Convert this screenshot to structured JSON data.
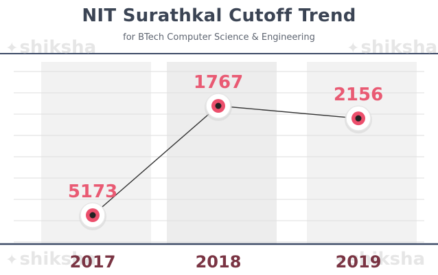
{
  "watermark": "shiksha",
  "chart_data": {
    "type": "line",
    "title": "NIT Surathkal Cutoff Trend",
    "subtitle": "for BTech Computer Science & Engineering",
    "categories": [
      "2017",
      "2018",
      "2019"
    ],
    "values": [
      5173,
      1767,
      2156
    ],
    "y_axis": "reversed (lower cutoff rank plotted higher)",
    "grid": true,
    "legend": "none",
    "colors": {
      "line": "#333333",
      "marker_ring": "#ec4f6c",
      "marker_center": "#222222",
      "label": "#e95a73",
      "tick_label": "#7a3443",
      "axis": "#3c4a66",
      "title": "#3b4454"
    }
  }
}
